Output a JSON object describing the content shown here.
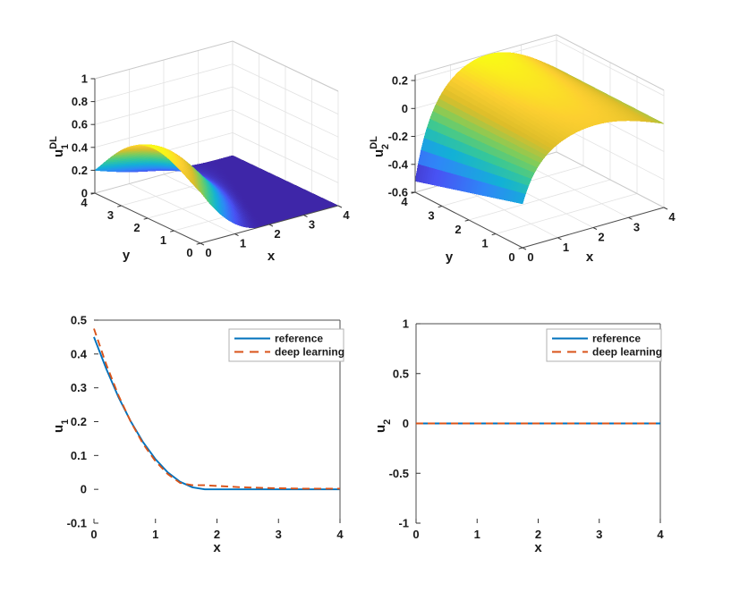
{
  "figure": {
    "background": "#ffffff",
    "text_color": "#1a1a1a"
  },
  "colors": {
    "reference_line": "#0072BD",
    "deep_learning_line": "#D95319",
    "grid": "#e2e2e2",
    "box_edge": "#c9c9c9",
    "axis_line": "#4d4d4d",
    "tick": "#333333",
    "legend_border": "#b0b0b0"
  },
  "colormap_parula": [
    "#3E26A8",
    "#4852F4",
    "#2E87F7",
    "#12B1D6",
    "#37C897",
    "#81CC59",
    "#DCBD29",
    "#FCCF30",
    "#F9FB15"
  ],
  "chart_data": [
    {
      "type": "surface",
      "id": "u1-dl-surface",
      "zlabel": {
        "base": "u",
        "sub": "1",
        "sup": "DL"
      },
      "xlabel": "x",
      "ylabel": "y",
      "xlim": [
        0,
        4
      ],
      "ylim": [
        0,
        4
      ],
      "zlim": [
        0,
        1
      ],
      "xticks": [
        0,
        1,
        2,
        3,
        4
      ],
      "yticks": [
        4,
        3,
        2,
        1,
        0
      ],
      "zticks": [
        0,
        0.2,
        0.4,
        0.6,
        0.8,
        1
      ],
      "grid": true,
      "z_formula": "(0.45+0.21*Math.pow(Math.sin(Math.PI*y/4),1.2)-0.25*Math.pow(y/4,3))*Math.pow(Math.max(0,1-Math.pow(x/(1.8+0.45*y),1+0.8*Math.sin(Math.PI*y/4))),2)",
      "sample_x": [
        0,
        1,
        2,
        3,
        4
      ],
      "sample_y": [
        0,
        1,
        2,
        3,
        4
      ],
      "sample_z": [
        [
          0.45,
          0.089,
          0,
          0,
          0
        ],
        [
          0.585,
          0.303,
          0.017,
          0,
          0
        ],
        [
          0.629,
          0.436,
          0.109,
          0,
          0
        ],
        [
          0.483,
          0.336,
          0.125,
          0.003,
          0
        ],
        [
          0.2,
          0.104,
          0.04,
          0.006,
          0
        ]
      ]
    },
    {
      "type": "surface",
      "id": "u2-dl-surface",
      "zlabel": {
        "base": "u",
        "sub": "2",
        "sup": "DL"
      },
      "xlabel": "x",
      "ylabel": "y",
      "xlim": [
        0,
        4
      ],
      "ylim": [
        0,
        4
      ],
      "zlim": [
        -0.6,
        0.24
      ],
      "xticks": [
        0,
        1,
        2,
        3,
        4
      ],
      "yticks": [
        4,
        3,
        2,
        1,
        0
      ],
      "zticks": [
        -0.6,
        -0.4,
        -0.2,
        0,
        0.2
      ],
      "grid": true,
      "z_formula": "(0.55+0.1125*y)*(-0.52*Math.exp(-2.5*x)+0.24*Math.sin(Math.PI*x/4))",
      "sample_x": [
        0,
        1,
        2,
        3,
        4
      ],
      "sample_y": [
        0,
        1,
        2,
        3,
        4
      ],
      "sample_z": [
        [
          -0.286,
          0.07,
          0.13,
          0.093,
          0
        ],
        [
          -0.344,
          0.084,
          0.157,
          0.112,
          0
        ],
        [
          -0.403,
          0.098,
          0.183,
          0.131,
          0
        ],
        [
          -0.462,
          0.113,
          0.21,
          0.15,
          0
        ],
        [
          -0.52,
          0.127,
          0.237,
          0.169,
          0
        ]
      ]
    },
    {
      "type": "line",
      "id": "u1-section",
      "xlabel": "x",
      "ylabel": {
        "base": "u",
        "sub": "1"
      },
      "xlim": [
        0,
        4
      ],
      "ylim": [
        -0.1,
        0.5
      ],
      "xticks": [
        0,
        1,
        2,
        3,
        4
      ],
      "yticks": [
        -0.1,
        0,
        0.1,
        0.2,
        0.3,
        0.4,
        0.5
      ],
      "legend": {
        "position": "top-right",
        "items": [
          "reference",
          "deep learning"
        ]
      },
      "series": [
        {
          "name": "reference",
          "color": "#0072BD",
          "dash": "solid",
          "x": [
            0,
            0.2,
            0.4,
            0.6,
            0.8,
            1.0,
            1.2,
            1.4,
            1.6,
            1.8,
            4.0
          ],
          "y": [
            0.45,
            0.356,
            0.272,
            0.2,
            0.139,
            0.089,
            0.05,
            0.022,
            0.006,
            0,
            0
          ]
        },
        {
          "name": "deep learning",
          "color": "#D95319",
          "dash": "dashed",
          "x": [
            0,
            0.2,
            0.4,
            0.6,
            0.8,
            1.0,
            1.2,
            1.4,
            1.6,
            1.8,
            2.0,
            2.2,
            2.4,
            2.6,
            2.8,
            3.0,
            3.4,
            4.0
          ],
          "y": [
            0.475,
            0.369,
            0.277,
            0.199,
            0.134,
            0.083,
            0.045,
            0.019,
            0.012,
            0.012,
            0.01,
            0.008,
            0.006,
            0.005,
            0.004,
            0.003,
            0.002,
            0.002
          ]
        }
      ]
    },
    {
      "type": "line",
      "id": "u2-section",
      "xlabel": "x",
      "ylabel": {
        "base": "u",
        "sub": "2"
      },
      "xlim": [
        0,
        4
      ],
      "ylim": [
        -1,
        1
      ],
      "xticks": [
        0,
        1,
        2,
        3,
        4
      ],
      "yticks": [
        -1,
        -0.5,
        0,
        0.5,
        1
      ],
      "legend": {
        "position": "top-right",
        "items": [
          "reference",
          "deep learning"
        ]
      },
      "series": [
        {
          "name": "reference",
          "color": "#0072BD",
          "dash": "solid",
          "x": [
            0,
            4
          ],
          "y": [
            0,
            0
          ]
        },
        {
          "name": "deep learning",
          "color": "#D95319",
          "dash": "dashed",
          "x": [
            0,
            4
          ],
          "y": [
            0,
            0
          ]
        }
      ]
    }
  ]
}
